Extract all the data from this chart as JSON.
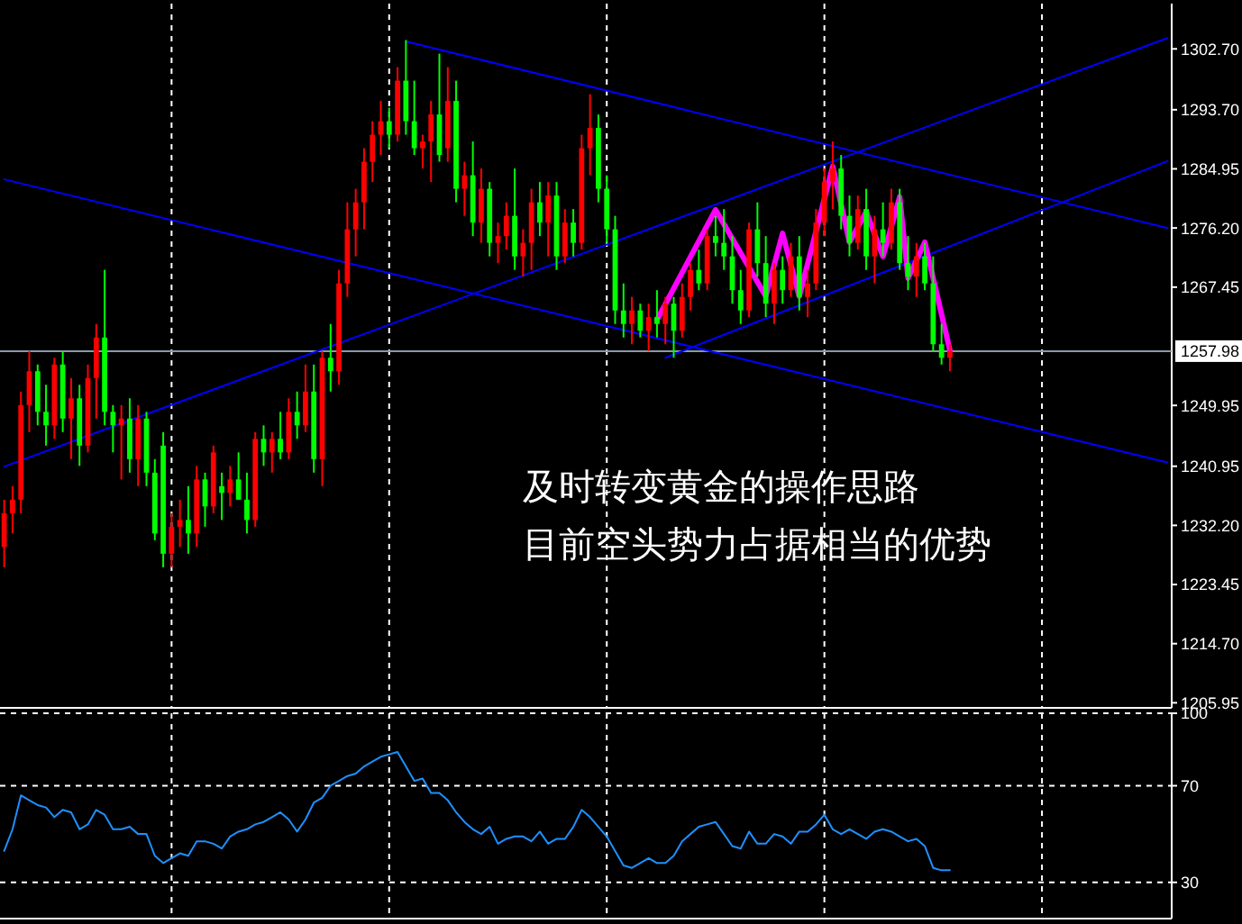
{
  "chart_data": [
    {
      "type": "candlestick",
      "categories": [
        null,
        null,
        null,
        null,
        null,
        null,
        null,
        null,
        null,
        null,
        null,
        null,
        null,
        null,
        null,
        null,
        null,
        null,
        null,
        null,
        null,
        null,
        null,
        null,
        null,
        null,
        null,
        null,
        null,
        null,
        null,
        null,
        null,
        null,
        null,
        null,
        null,
        null,
        null,
        null,
        null,
        null,
        null,
        null,
        null,
        null,
        null,
        null,
        null,
        null,
        null,
        null,
        null,
        null,
        null,
        null,
        null,
        null,
        null,
        null,
        null,
        null,
        null,
        null,
        null,
        null,
        null,
        null,
        null,
        null,
        null,
        null,
        null,
        null,
        null,
        null,
        null,
        null,
        null,
        null,
        null,
        null,
        null,
        null,
        null,
        null,
        null,
        null,
        null,
        null,
        null,
        null,
        null,
        null,
        null,
        null,
        null,
        null,
        null,
        null,
        null,
        null,
        null,
        null,
        null,
        null,
        null,
        null,
        null,
        null,
        null,
        null,
        null,
        null,
        null,
        null,
        null,
        null,
        null,
        null,
        null,
        null,
        null,
        null,
        null,
        null,
        null,
        null,
        null,
        null,
        null,
        null,
        null,
        null,
        null,
        null,
        null,
        null,
        null,
        null
      ],
      "ohlc": [
        [
          1229,
          1236,
          1226,
          1234
        ],
        [
          1234,
          1238,
          1231,
          1236
        ],
        [
          1236,
          1252,
          1234,
          1250
        ],
        [
          1250,
          1258,
          1246,
          1255
        ],
        [
          1255,
          1256,
          1247,
          1249
        ],
        [
          1249,
          1253,
          1244,
          1247
        ],
        [
          1247,
          1257,
          1245,
          1256
        ],
        [
          1256,
          1258,
          1246,
          1248
        ],
        [
          1248,
          1254,
          1242,
          1251
        ],
        [
          1251,
          1253,
          1241,
          1244
        ],
        [
          1244,
          1256,
          1243,
          1254
        ],
        [
          1254,
          1262,
          1248,
          1260
        ],
        [
          1260,
          1270,
          1247,
          1249
        ],
        [
          1249,
          1250,
          1243,
          1247
        ],
        [
          1247,
          1250,
          1239,
          1248
        ],
        [
          1248,
          1251,
          1240,
          1242
        ],
        [
          1242,
          1250,
          1238,
          1248
        ],
        [
          1248,
          1249,
          1238,
          1240
        ],
        [
          1240,
          1242,
          1230,
          1231
        ],
        [
          1244,
          1246,
          1226,
          1228
        ],
        [
          1228,
          1234,
          1226,
          1232
        ],
        [
          1232,
          1236,
          1229,
          1233
        ],
        [
          1233,
          1238,
          1228,
          1231
        ],
        [
          1231,
          1241,
          1229,
          1239
        ],
        [
          1239,
          1240,
          1232,
          1235
        ],
        [
          1235,
          1244,
          1234,
          1243
        ],
        [
          1238,
          1240,
          1233,
          1237
        ],
        [
          1237,
          1241,
          1235,
          1239
        ],
        [
          1239,
          1243,
          1236,
          1236
        ],
        [
          1236,
          1240,
          1231,
          1233
        ],
        [
          1233,
          1246,
          1232,
          1245
        ],
        [
          1245,
          1247,
          1241,
          1243
        ],
        [
          1243,
          1246,
          1240,
          1245
        ],
        [
          1245,
          1249,
          1242,
          1243
        ],
        [
          1243,
          1251,
          1242,
          1249
        ],
        [
          1249,
          1252,
          1245,
          1247
        ],
        [
          1247,
          1256,
          1246,
          1252
        ],
        [
          1252,
          1256,
          1240,
          1242
        ],
        [
          1242,
          1258,
          1238,
          1257
        ],
        [
          1257,
          1262,
          1252,
          1255
        ],
        [
          1255,
          1270,
          1253,
          1268
        ],
        [
          1268,
          1280,
          1266,
          1276
        ],
        [
          1276,
          1282,
          1272,
          1280
        ],
        [
          1280,
          1288,
          1276,
          1286
        ],
        [
          1286,
          1292,
          1283,
          1290
        ],
        [
          1290,
          1295,
          1287,
          1292
        ],
        [
          1292,
          1294,
          1288,
          1290
        ],
        [
          1290,
          1300,
          1289,
          1298
        ],
        [
          1298,
          1304,
          1290,
          1292
        ],
        [
          1292,
          1298,
          1287,
          1288
        ],
        [
          1288,
          1290,
          1285,
          1289
        ],
        [
          1289,
          1295,
          1283,
          1293
        ],
        [
          1293,
          1302,
          1286,
          1287
        ],
        [
          1288,
          1300,
          1286,
          1295
        ],
        [
          1295,
          1298,
          1280,
          1282
        ],
        [
          1282,
          1286,
          1278,
          1284
        ],
        [
          1284,
          1289,
          1275,
          1277
        ],
        [
          1277,
          1285,
          1274,
          1282
        ],
        [
          1282,
          1283,
          1272,
          1274
        ],
        [
          1274,
          1277,
          1271,
          1275
        ],
        [
          1275,
          1280,
          1273,
          1278
        ],
        [
          1278,
          1285,
          1270,
          1272
        ],
        [
          1272,
          1276,
          1269,
          1274
        ],
        [
          1274,
          1282,
          1270,
          1280
        ],
        [
          1280,
          1283,
          1275,
          1277
        ],
        [
          1277,
          1283,
          1272,
          1281
        ],
        [
          1281,
          1283,
          1270,
          1272
        ],
        [
          1272,
          1279,
          1271,
          1277
        ],
        [
          1277,
          1279,
          1272,
          1274
        ],
        [
          1274,
          1290,
          1273,
          1288
        ],
        [
          1288,
          1296,
          1284,
          1291
        ],
        [
          1291,
          1293,
          1280,
          1282
        ],
        [
          1282,
          1284,
          1274,
          1276
        ],
        [
          1276,
          1278,
          1262,
          1264
        ],
        [
          1264,
          1268,
          1260,
          1262
        ],
        [
          1262,
          1266,
          1259,
          1264
        ],
        [
          1264,
          1265,
          1260,
          1261
        ],
        [
          1261,
          1265,
          1258,
          1263
        ],
        [
          1263,
          1267,
          1260,
          1262
        ],
        [
          1262,
          1266,
          1259,
          1265
        ],
        [
          1265,
          1266,
          1257,
          1261
        ],
        [
          1261,
          1268,
          1260,
          1266
        ],
        [
          1266,
          1271,
          1264,
          1270
        ],
        [
          1270,
          1273,
          1267,
          1268
        ],
        [
          1268,
          1276,
          1267,
          1275
        ],
        [
          1275,
          1278,
          1272,
          1274
        ],
        [
          1274,
          1279,
          1270,
          1272
        ],
        [
          1272,
          1275,
          1265,
          1267
        ],
        [
          1267,
          1270,
          1262,
          1264
        ],
        [
          1264,
          1277,
          1263,
          1276
        ],
        [
          1276,
          1280,
          1269,
          1271
        ],
        [
          1271,
          1275,
          1263,
          1265
        ],
        [
          1265,
          1271,
          1262,
          1270
        ],
        [
          1270,
          1272,
          1265,
          1267
        ],
        [
          1267,
          1274,
          1266,
          1272
        ],
        [
          1272,
          1275,
          1264,
          1266
        ],
        [
          1266,
          1270,
          1263,
          1268
        ],
        [
          1268,
          1279,
          1267,
          1277
        ],
        [
          1277,
          1285,
          1275,
          1283
        ],
        [
          1283,
          1289,
          1279,
          1285
        ],
        [
          1285,
          1287,
          1276,
          1278
        ],
        [
          1278,
          1281,
          1272,
          1274
        ],
        [
          1274,
          1281,
          1273,
          1279
        ],
        [
          1279,
          1282,
          1270,
          1272
        ],
        [
          1272,
          1278,
          1268,
          1276
        ],
        [
          1276,
          1280,
          1272,
          1274
        ],
        [
          1274,
          1282,
          1273,
          1280
        ],
        [
          1280,
          1282,
          1270,
          1271
        ],
        [
          1271,
          1275,
          1267,
          1269
        ],
        [
          1269,
          1274,
          1266,
          1272
        ],
        [
          1272,
          1274,
          1267,
          1268
        ],
        [
          1268,
          1272,
          1258,
          1259
        ],
        [
          1259,
          1262,
          1256,
          1257
        ],
        [
          1257,
          1259,
          1255,
          1258
        ],
        null,
        null,
        null,
        null,
        null,
        null,
        null,
        null,
        null,
        null,
        null,
        null,
        null,
        null,
        null,
        null,
        null,
        null,
        null,
        null,
        null,
        null,
        null,
        null,
        null,
        null
      ],
      "colors": [
        "#ff0000",
        "#ff0000",
        "#ff0000",
        "#ff0000",
        "#00ff00",
        "#00ff00",
        "#ff0000",
        "#00ff00",
        "#ff0000",
        "#00ff00",
        "#ff0000",
        "#ff0000",
        "#00ff00",
        "#00ff00",
        "#ff0000",
        "#00ff00",
        "#ff0000",
        "#00ff00",
        "#00ff00",
        "#00ff00",
        "#ff0000",
        "#ff0000",
        "#00ff00",
        "#ff0000",
        "#00ff00",
        "#ff0000",
        "#00ff00",
        "#ff0000",
        "#00ff00",
        "#00ff00",
        "#ff0000",
        "#00ff00",
        "#ff0000",
        "#00ff00",
        "#ff0000",
        "#00ff00",
        "#ff0000",
        "#00ff00",
        "#ff0000",
        "#00ff00",
        "#ff0000",
        "#ff0000",
        "#ff0000",
        "#ff0000",
        "#ff0000",
        "#ff0000",
        "#00ff00",
        "#ff0000",
        "#00ff00",
        "#00ff00",
        "#ff0000",
        "#ff0000",
        "#00ff00",
        "#ff0000",
        "#00ff00",
        "#ff0000",
        "#00ff00",
        "#ff0000",
        "#00ff00",
        "#ff0000",
        "#ff0000",
        "#00ff00",
        "#ff0000",
        "#ff0000",
        "#00ff00",
        "#ff0000",
        "#00ff00",
        "#ff0000",
        "#00ff00",
        "#ff0000",
        "#ff0000",
        "#00ff00",
        "#00ff00",
        "#00ff00",
        "#00ff00",
        "#ff0000",
        "#00ff00",
        "#ff0000",
        "#00ff00",
        "#ff0000",
        "#00ff00",
        "#ff0000",
        "#ff0000",
        "#00ff00",
        "#ff0000",
        "#00ff00",
        "#00ff00",
        "#00ff00",
        "#00ff00",
        "#ff0000",
        "#00ff00",
        "#00ff00",
        "#ff0000",
        "#00ff00",
        "#ff0000",
        "#00ff00",
        "#ff0000",
        "#ff0000",
        "#ff0000",
        "#ff0000",
        "#00ff00",
        "#00ff00",
        "#ff0000",
        "#00ff00",
        "#ff0000",
        "#00ff00",
        "#ff0000",
        "#00ff00",
        "#00ff00",
        "#ff0000",
        "#00ff00",
        "#00ff00",
        "#00ff00",
        "#ff0000",
        null,
        null,
        null,
        null,
        null,
        null,
        null,
        null,
        null,
        null,
        null,
        null,
        null,
        null,
        null,
        null,
        null,
        null,
        null,
        null,
        null,
        null,
        null,
        null,
        null,
        null
      ],
      "series": [
        {
          "type": "line",
          "color": "#0000ff",
          "values": [
            null,
            null,
            null,
            null,
            null,
            null,
            null,
            null,
            null,
            null,
            null,
            null,
            null,
            null,
            null,
            null,
            null,
            null,
            null,
            null,
            null,
            null,
            null,
            null,
            null,
            null,
            null,
            null,
            null,
            null,
            null,
            null,
            null,
            null,
            null,
            null,
            null,
            null,
            null,
            null,
            null,
            null,
            null,
            null,
            null,
            null,
            null,
            null,
            1303.8,
            null,
            null,
            null,
            null,
            null,
            null,
            null,
            null,
            null,
            null,
            null,
            null,
            null,
            null,
            null,
            null,
            null,
            null,
            null,
            null,
            null,
            null,
            null,
            null,
            null,
            null,
            null,
            null,
            null,
            null,
            null,
            null,
            null,
            null,
            null,
            null,
            null,
            null,
            null,
            null,
            null,
            null,
            null,
            null,
            null,
            null,
            null,
            null,
            null,
            null,
            null,
            null,
            null,
            null,
            null,
            null,
            null,
            null,
            null,
            null,
            null,
            null,
            null,
            null,
            null,
            null,
            null,
            null,
            null,
            null,
            null,
            null,
            null,
            null,
            null,
            null,
            null,
            null,
            null,
            null,
            null,
            null,
            null,
            null,
            null,
            null,
            null,
            null,
            null,
            null,
            1276.2
          ]
        },
        {
          "type": "line",
          "color": "#0000ff",
          "values": [
            1240.9,
            null,
            null,
            null,
            null,
            null,
            null,
            null,
            null,
            null,
            null,
            null,
            null,
            null,
            null,
            null,
            null,
            null,
            null,
            null,
            null,
            null,
            null,
            null,
            null,
            null,
            null,
            null,
            null,
            null,
            null,
            null,
            null,
            null,
            null,
            null,
            null,
            null,
            null,
            null,
            null,
            null,
            null,
            null,
            null,
            null,
            null,
            null,
            null,
            null,
            null,
            null,
            null,
            null,
            null,
            null,
            null,
            null,
            null,
            null,
            null,
            null,
            null,
            null,
            null,
            null,
            null,
            null,
            null,
            null,
            null,
            null,
            null,
            null,
            null,
            null,
            null,
            null,
            null,
            null,
            null,
            null,
            null,
            null,
            null,
            null,
            null,
            null,
            null,
            null,
            null,
            null,
            null,
            null,
            null,
            null,
            null,
            null,
            null,
            null,
            null,
            null,
            null,
            null,
            null,
            null,
            null,
            null,
            null,
            null,
            null,
            null,
            null,
            null,
            null,
            null,
            null,
            null,
            null,
            null,
            null,
            null,
            null,
            null,
            null,
            null,
            null,
            null,
            null,
            null,
            null,
            null,
            null,
            null,
            null,
            null,
            null,
            null,
            null,
            1304.3
          ]
        },
        {
          "type": "line",
          "color": "#0000ff",
          "values": [
            1283.4,
            null,
            null,
            null,
            null,
            null,
            null,
            null,
            null,
            null,
            null,
            null,
            null,
            null,
            null,
            null,
            null,
            null,
            null,
            null,
            null,
            null,
            null,
            null,
            null,
            null,
            null,
            null,
            null,
            null,
            null,
            null,
            null,
            null,
            null,
            null,
            null,
            null,
            null,
            null,
            null,
            null,
            null,
            null,
            null,
            null,
            null,
            null,
            null,
            null,
            null,
            null,
            null,
            null,
            null,
            null,
            null,
            null,
            null,
            null,
            null,
            null,
            null,
            null,
            null,
            null,
            null,
            null,
            null,
            null,
            null,
            null,
            null,
            null,
            null,
            null,
            null,
            null,
            null,
            null,
            null,
            null,
            null,
            null,
            null,
            null,
            null,
            null,
            null,
            null,
            null,
            null,
            null,
            null,
            null,
            null,
            null,
            null,
            null,
            null,
            null,
            null,
            null,
            null,
            null,
            null,
            null,
            null,
            null,
            null,
            null,
            null,
            null,
            null,
            null,
            null,
            null,
            null,
            null,
            null,
            null,
            null,
            null,
            null,
            null,
            null,
            null,
            null,
            null,
            null,
            null,
            null,
            null,
            null,
            null,
            null,
            null,
            null,
            null,
            1241.5
          ]
        },
        {
          "type": "line",
          "color": "#0000ff",
          "values": [
            null,
            null,
            null,
            null,
            null,
            null,
            null,
            null,
            null,
            null,
            null,
            null,
            null,
            null,
            null,
            null,
            null,
            null,
            null,
            null,
            null,
            null,
            null,
            null,
            null,
            null,
            null,
            null,
            null,
            null,
            null,
            null,
            null,
            null,
            null,
            null,
            null,
            null,
            null,
            null,
            null,
            null,
            null,
            null,
            null,
            null,
            null,
            null,
            null,
            null,
            null,
            null,
            null,
            null,
            null,
            null,
            null,
            null,
            null,
            null,
            null,
            null,
            null,
            null,
            null,
            null,
            null,
            null,
            null,
            null,
            null,
            null,
            null,
            null,
            null,
            null,
            null,
            null,
            null,
            1257.0,
            null,
            null,
            null,
            null,
            null,
            null,
            null,
            null,
            null,
            null,
            null,
            null,
            null,
            null,
            null,
            null,
            null,
            null,
            null,
            null,
            null,
            null,
            null,
            null,
            null,
            null,
            null,
            null,
            null,
            null,
            null,
            null,
            null,
            null,
            null,
            null,
            null,
            null,
            null,
            null,
            null,
            null,
            null,
            null,
            null,
            null,
            null,
            null,
            null,
            null,
            null,
            null,
            null,
            null,
            null,
            null,
            null,
            null,
            null,
            1286.1
          ]
        },
        {
          "type": "line",
          "color": "#ff00ff",
          "values": [
            null,
            null,
            null,
            null,
            null,
            null,
            null,
            null,
            null,
            null,
            null,
            null,
            null,
            null,
            null,
            null,
            null,
            null,
            null,
            null,
            null,
            null,
            null,
            null,
            null,
            null,
            null,
            null,
            null,
            null,
            null,
            null,
            null,
            null,
            null,
            null,
            null,
            null,
            null,
            null,
            null,
            null,
            null,
            null,
            null,
            null,
            null,
            null,
            null,
            null,
            null,
            null,
            null,
            null,
            null,
            null,
            null,
            null,
            null,
            null,
            null,
            null,
            null,
            null,
            null,
            null,
            null,
            null,
            null,
            null,
            null,
            null,
            null,
            null,
            null,
            null,
            null,
            null,
            1262.6,
            null,
            null,
            null,
            null,
            null,
            null,
            1278.9,
            null,
            null,
            null,
            null,
            null,
            1266.1,
            null,
            1275.4,
            null,
            1266.1,
            null,
            null,
            null,
            1285.3,
            null,
            1274.1,
            null,
            1278.6,
            null,
            1272.0,
            null,
            1280.8,
            1268.8,
            null,
            1274.1,
            null,
            null,
            1258.1,
            null,
            null,
            null,
            null,
            null,
            null,
            null,
            null,
            null,
            null,
            null,
            null,
            null,
            null,
            null,
            null,
            null,
            null,
            null,
            null,
            null,
            null,
            null,
            null,
            null,
            null
          ]
        }
      ],
      "ylim": [
        1205.2,
        1309.4
      ],
      "yticks": [
        1205.95,
        {
          "value": 1214.7,
          "label": "1214.70"
        },
        1223.45,
        {
          "value": 1232.2,
          "label": "1232.20"
        },
        1240.95,
        1249.95,
        1267.45,
        {
          "value": 1276.2,
          "label": "1276.20"
        },
        1284.95,
        {
          "value": 1293.7,
          "label": "1293.70"
        },
        {
          "value": 1302.7,
          "label": "1302.70"
        }
      ],
      "ref_lines": [
        {
          "axis": "y",
          "value": 1257.98,
          "label": "1257.98",
          "color": "#8899aa"
        }
      ],
      "annotations": [
        "及时转变黄金的操作思路",
        "目前空头势力占据相当的优势"
      ],
      "grid": "x",
      "tick_labels": "y"
    },
    {
      "type": "line",
      "color": "#1e90ff",
      "categories": [
        null,
        null,
        null,
        null,
        null,
        null,
        null,
        null,
        null,
        null,
        null,
        null,
        null,
        null,
        null,
        null,
        null,
        null,
        null,
        null,
        null,
        null,
        null,
        null,
        null,
        null,
        null,
        null,
        null,
        null,
        null,
        null,
        null,
        null,
        null,
        null,
        null,
        null,
        null,
        null,
        null,
        null,
        null,
        null,
        null,
        null,
        null,
        null,
        null,
        null,
        null,
        null,
        null,
        null,
        null,
        null,
        null,
        null,
        null,
        null,
        null,
        null,
        null,
        null,
        null,
        null,
        null,
        null,
        null,
        null,
        null,
        null,
        null,
        null,
        null,
        null,
        null,
        null,
        null,
        null,
        null,
        null,
        null,
        null,
        null,
        null,
        null,
        null,
        null,
        null,
        null,
        null,
        null,
        null,
        null,
        null,
        null,
        null,
        null,
        null,
        null,
        null,
        null,
        null,
        null,
        null,
        null,
        null,
        null,
        null,
        null,
        null,
        null,
        null,
        null,
        null,
        null,
        null,
        null,
        null,
        null,
        null,
        null,
        null,
        null,
        null,
        null,
        null,
        null,
        null,
        null,
        null,
        null,
        null,
        null,
        null,
        null,
        null,
        null,
        null
      ],
      "values": [
        43,
        52,
        66,
        64,
        62,
        61,
        57,
        60,
        59,
        52,
        54,
        60,
        58,
        52,
        52,
        53,
        50,
        50,
        41,
        38,
        40,
        42,
        41,
        47,
        47,
        46,
        44,
        49,
        51,
        52,
        54,
        55,
        57,
        59,
        56,
        51,
        56,
        63,
        65,
        70,
        72,
        74,
        75,
        78,
        80,
        82,
        83,
        84,
        78,
        72,
        73,
        67,
        67,
        64,
        59,
        55,
        52,
        50,
        53,
        46,
        48,
        49,
        49,
        47,
        51,
        46,
        48,
        48,
        53,
        60,
        57,
        53,
        49,
        43,
        37,
        36,
        38,
        40,
        38,
        38,
        41,
        47,
        50,
        53,
        54,
        55,
        50,
        45,
        44,
        51,
        46,
        46,
        50,
        49,
        46,
        51,
        51,
        54,
        58,
        52,
        50,
        52,
        50,
        48,
        51,
        52,
        51,
        49,
        47,
        48,
        45,
        36,
        35,
        35,
        null,
        null,
        null,
        null,
        null,
        null,
        null,
        null,
        null,
        null,
        null,
        null,
        null,
        null,
        null,
        null,
        null,
        null,
        null,
        null,
        null,
        null,
        null,
        null,
        null,
        null
      ],
      "ylim": [
        15,
        100
      ],
      "yticks": [
        30,
        70,
        100
      ],
      "grid": true,
      "tick_labels": "y"
    }
  ]
}
